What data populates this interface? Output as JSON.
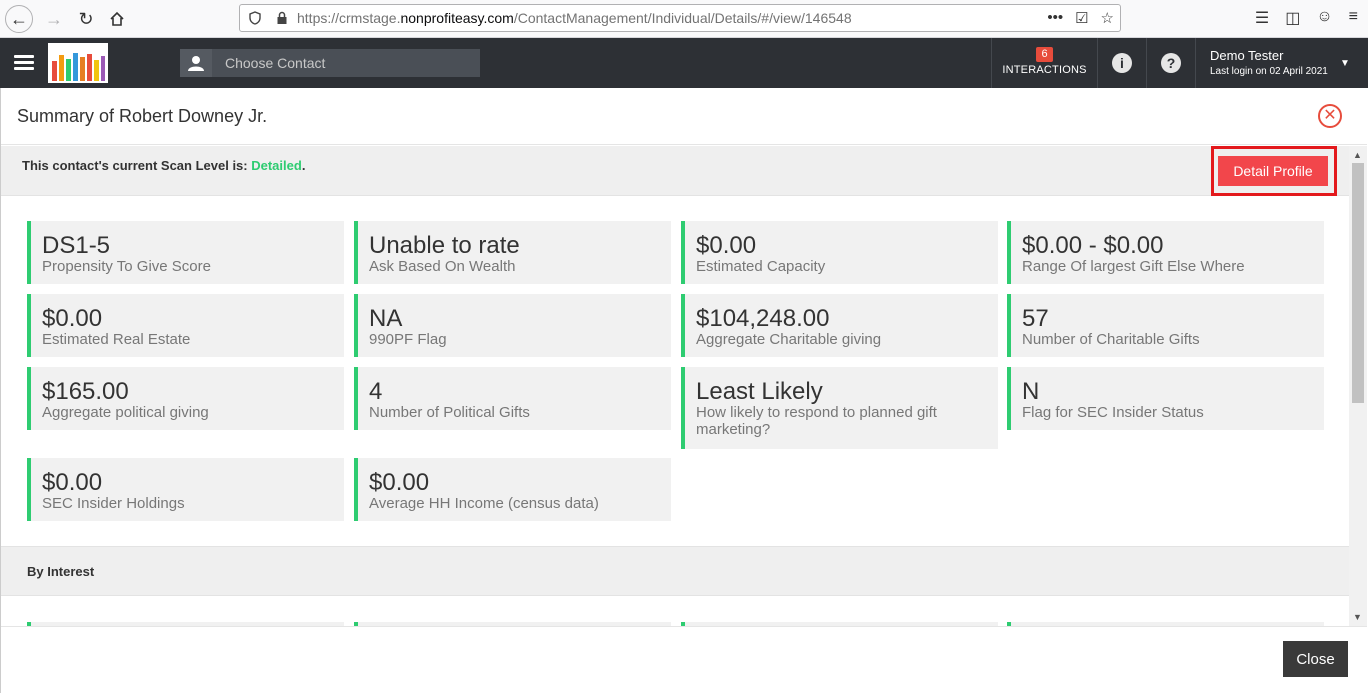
{
  "browser": {
    "url_prefix": "https://crmstage.",
    "url_domain": "nonprofiteasy.com",
    "url_path": "/ContactManagement/Individual/Details/#/view/146548",
    "more_icon": "•••"
  },
  "header": {
    "contact_placeholder": "Choose Contact",
    "interactions_count": "6",
    "interactions_label": "INTERACTIONS",
    "info_icon": "i",
    "help_icon": "?",
    "user_name": "Demo Tester",
    "last_login": "Last login on 02 April 2021"
  },
  "modal": {
    "title": "Summary of Robert Downey Jr.",
    "scan_text": "This contact's current Scan Level is: ",
    "scan_level": "Detailed",
    "scan_suffix": ".",
    "detail_button": "Detail Profile",
    "close_button": "Close",
    "cards": [
      {
        "value": "DS1-5",
        "label": "Propensity To Give Score"
      },
      {
        "value": "Unable to rate",
        "label": "Ask Based On Wealth"
      },
      {
        "value": "$0.00",
        "label": "Estimated Capacity"
      },
      {
        "value": "$0.00 - $0.00",
        "label": "Range Of largest Gift Else Where"
      },
      {
        "value": "$0.00",
        "label": "Estimated Real Estate"
      },
      {
        "value": "NA",
        "label": "990PF Flag"
      },
      {
        "value": "$104,248.00",
        "label": "Aggregate Charitable giving"
      },
      {
        "value": "57",
        "label": "Number of Charitable Gifts"
      },
      {
        "value": "$165.00",
        "label": "Aggregate political giving"
      },
      {
        "value": "4",
        "label": "Number of Political Gifts"
      },
      {
        "value": "Least Likely",
        "label": "How likely to respond to planned gift marketing?"
      },
      {
        "value": "N",
        "label": "Flag for SEC Insider Status"
      },
      {
        "value": "$0.00",
        "label": "SEC Insider Holdings"
      },
      {
        "value": "$0.00",
        "label": "Average HH Income (census data)"
      }
    ],
    "interest_title": "By Interest"
  },
  "colors": {
    "accent_green": "#2ecc71",
    "danger_red": "#e74c3c",
    "header_dark": "#2d3035"
  }
}
